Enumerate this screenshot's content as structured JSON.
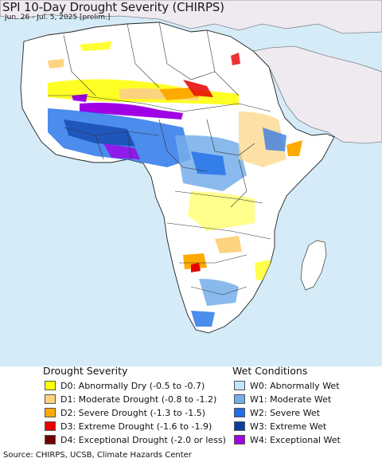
{
  "title": "SPI 10-Day Drought Severity (CHIRPS)",
  "subtitle": "Jun. 26 - Jul. 5, 2025 [prelim.]",
  "legend": {
    "drought_title": "Drought Severity",
    "wet_title": "Wet Conditions",
    "drought_items": [
      {
        "label": "D0: Abnormally Dry (-0.5 to -0.7)",
        "color": "#ffff00"
      },
      {
        "label": "D1: Moderate Drought (-0.8 to -1.2)",
        "color": "#fcd37f"
      },
      {
        "label": "D2: Severe Drought (-1.3 to -1.5)",
        "color": "#ffaa00"
      },
      {
        "label": "D3: Extreme Drought (-1.6 to -1.9)",
        "color": "#e60000"
      },
      {
        "label": "D4: Exceptional Drought (-2.0 or less)",
        "color": "#730000"
      }
    ],
    "wet_items": [
      {
        "label": "W0: Abnormally Wet",
        "color": "#bfe6fa"
      },
      {
        "label": "W1: Moderate Wet",
        "color": "#75aeea"
      },
      {
        "label": "W2: Severe Wet",
        "color": "#1e6fe8"
      },
      {
        "label": "W3: Extreme Wet",
        "color": "#0b3ea6"
      },
      {
        "label": "W4: Exceptional Wet",
        "color": "#a000e6"
      }
    ]
  },
  "source": "Source: CHIRPS, UCSB, Climate Hazards Center",
  "colors": {
    "ocean": "#d6ebf8",
    "land": "#ffffff",
    "outside_land": "#eeeaf0",
    "border": "#333333"
  }
}
